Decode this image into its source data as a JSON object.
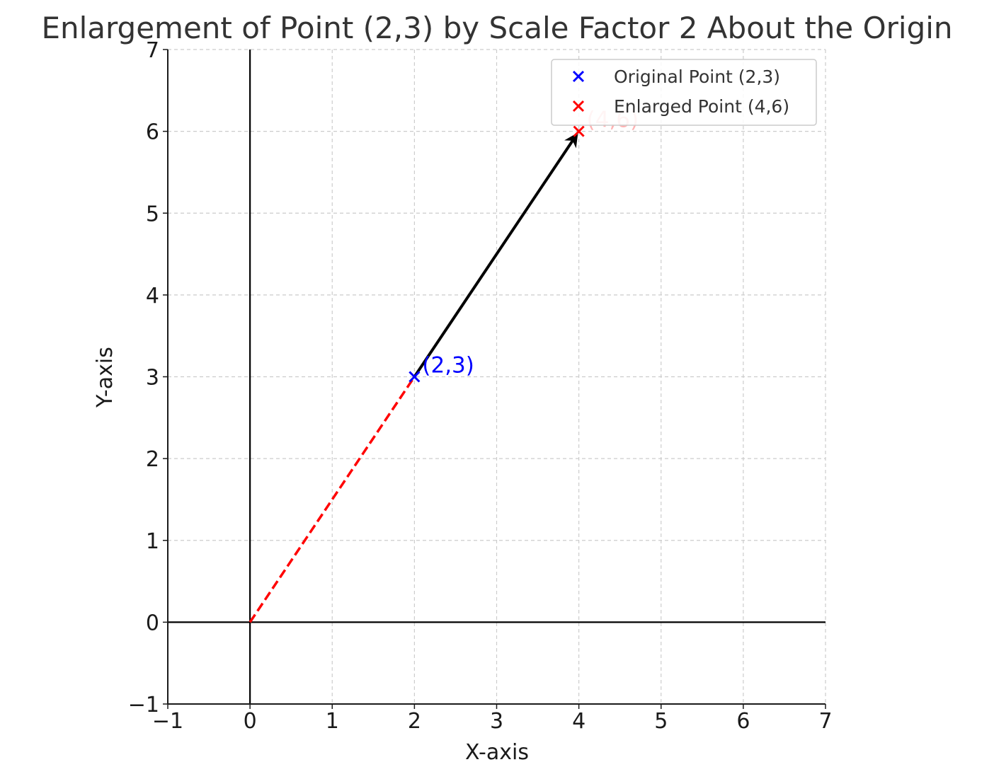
{
  "chart_data": {
    "type": "scatter",
    "title": "Enlargement of Point (2,3) by Scale Factor 2 About the Origin",
    "xlabel": "X-axis",
    "ylabel": "Y-axis",
    "xlim": [
      -1,
      7
    ],
    "ylim": [
      -1,
      7
    ],
    "x_ticks": [
      -1,
      0,
      1,
      2,
      3,
      4,
      5,
      6,
      7
    ],
    "y_ticks": [
      -1,
      0,
      1,
      2,
      3,
      4,
      5,
      6,
      7
    ],
    "x_tick_labels": [
      "−1",
      "0",
      "1",
      "2",
      "3",
      "4",
      "5",
      "6",
      "7"
    ],
    "y_tick_labels": [
      "−1",
      "0",
      "1",
      "2",
      "3",
      "4",
      "5",
      "6",
      "7"
    ],
    "grid": true,
    "legend_position": "top-right",
    "series": [
      {
        "name": "Original Point (2,3)",
        "marker": "x",
        "color": "#0000ff",
        "x": [
          2
        ],
        "y": [
          3
        ],
        "point_label": "(2,3)"
      },
      {
        "name": "Enlarged Point (4,6)",
        "marker": "x",
        "color": "#ff0000",
        "x": [
          4
        ],
        "y": [
          6
        ],
        "point_label": "(4,6)"
      }
    ],
    "annotations": [
      {
        "type": "dashed-line",
        "color": "#ff0000",
        "from": [
          0,
          0
        ],
        "to": [
          2,
          3
        ]
      },
      {
        "type": "arrow",
        "color": "#000000",
        "from": [
          2,
          3
        ],
        "to": [
          4,
          6
        ]
      }
    ],
    "reference_lines": {
      "x_axis_at_y": 0,
      "y_axis_at_x": 0
    }
  }
}
